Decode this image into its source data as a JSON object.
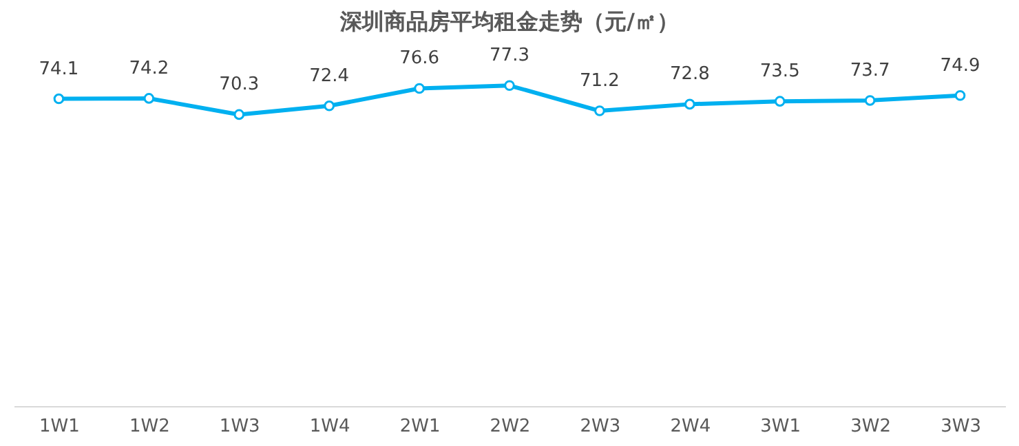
{
  "chart_data": {
    "type": "line",
    "title": "深圳商品房平均租金走势（元/㎡）",
    "categories": [
      "1W1",
      "1W2",
      "1W3",
      "1W4",
      "2W1",
      "2W2",
      "2W3",
      "2W4",
      "3W1",
      "3W2",
      "3W3"
    ],
    "series": [
      {
        "color": "#00b0f0",
        "values": [
          74.1,
          74.2,
          70.3,
          72.4,
          76.6,
          77.3,
          71.2,
          72.8,
          73.5,
          73.7,
          74.9
        ]
      }
    ],
    "tick_labels": "x",
    "grid": false,
    "marker": "circle",
    "line_style": "solid",
    "data_labels": true
  }
}
